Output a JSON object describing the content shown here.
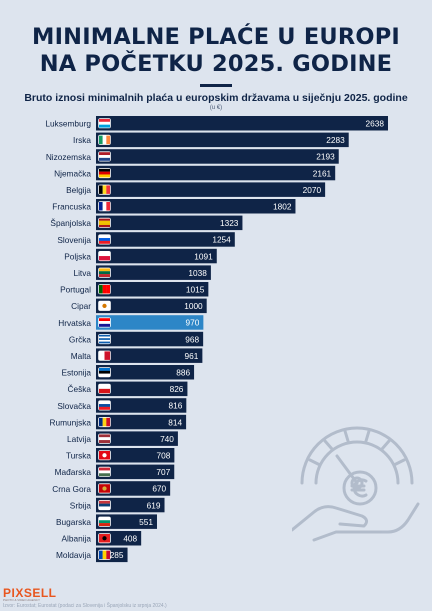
{
  "header": {
    "title_line1": "MINIMALNE PLAĆE U EUROPI",
    "title_line2": "NA POČETKU 2025. GODINE",
    "subtitle": "Bruto iznosi minimalnih plaća u europskim državama u siječnju 2025. godine",
    "unit": "(u €)"
  },
  "footer": {
    "logo": "PIXSELL",
    "logo_tagline": "PHOTO & VIDEO AGENCY",
    "source": "Izvor: Eurostat; Eurostat (podaci za Slovenija i Španjolsku iz srpnja 2024.)"
  },
  "colors": {
    "bar": "#0f2447",
    "highlight": "#2d86c7",
    "background": "#dde4ee",
    "text": "#0f2447"
  },
  "decoration_icon": "hand-gauge-euro-icon",
  "chart_data": {
    "type": "bar",
    "orientation": "horizontal",
    "highlight": "Hrvatska",
    "categories": [
      "Luksemburg",
      "Irska",
      "Nizozemska",
      "Njemačka",
      "Belgija",
      "Francuska",
      "Španjolska",
      "Slovenija",
      "Poljska",
      "Litva",
      "Portugal",
      "Cipar",
      "Hrvatska",
      "Grčka",
      "Malta",
      "Estonija",
      "Češka",
      "Slovačka",
      "Rumunjska",
      "Latvija",
      "Turska",
      "Mađarska",
      "Crna Gora",
      "Srbija",
      "Bugarska",
      "Albanija",
      "Moldavija"
    ],
    "values": [
      2638,
      2283,
      2193,
      2161,
      2070,
      1802,
      1323,
      1254,
      1091,
      1038,
      1015,
      1000,
      970,
      968,
      961,
      886,
      826,
      816,
      814,
      740,
      708,
      707,
      670,
      619,
      551,
      408,
      285
    ],
    "labels": [
      "2638",
      "2283",
      "2193",
      "2161",
      "2070",
      "1802",
      "1323",
      "1254",
      "1091",
      "1038",
      "1015",
      "1000",
      "970",
      "968",
      "961",
      "886",
      "826",
      "816",
      "814",
      "740",
      "708",
      "707",
      "670",
      "619",
      "551",
      "408",
      "285"
    ],
    "flags": [
      "lu",
      "ie",
      "nl",
      "de",
      "be",
      "fr",
      "es",
      "si",
      "pl",
      "lt",
      "pt",
      "cy",
      "hr",
      "gr",
      "mt",
      "ee",
      "cz",
      "sk",
      "ro",
      "lv",
      "tr",
      "hu",
      "me",
      "rs",
      "bg",
      "al",
      "md"
    ],
    "title": "MINIMALNE PLAĆE U EUROPI NA POČETKU 2025. GODINE",
    "xlabel": "",
    "ylabel": "",
    "xlim": [
      0,
      2638
    ],
    "grid": false,
    "legend": "none"
  }
}
